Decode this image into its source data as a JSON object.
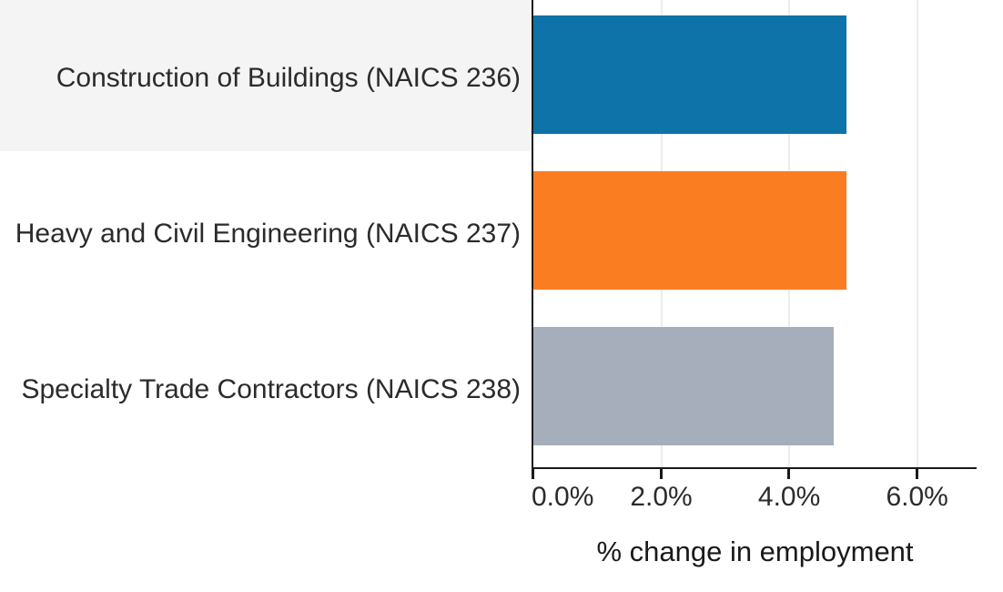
{
  "chart_data": {
    "type": "bar",
    "orientation": "horizontal",
    "title": "",
    "xlabel": "% change in employment",
    "ylabel": "",
    "categories": [
      "Construction of Buildings (NAICS 236)",
      "Heavy and Civil Engineering (NAICS 237)",
      "Specialty Trade Contractors (NAICS 238)"
    ],
    "values": [
      4.9,
      4.9,
      4.7
    ],
    "unit": "%",
    "bar_colors": [
      "#0d73a8",
      "#fb7d21",
      "#a5aeba"
    ],
    "xlim": [
      0,
      6.93
    ],
    "x_ticks": [
      {
        "value": 0,
        "label": "0.0%"
      },
      {
        "value": 2,
        "label": "2.0%"
      },
      {
        "value": 4,
        "label": "4.0%"
      },
      {
        "value": 6,
        "label": "6.0%"
      }
    ],
    "gridlines": "vertical",
    "legend": "none",
    "highlighted_row": 0,
    "highlight_color": "#f4f4f4",
    "axis_color": "#1a1a1a",
    "gridline_color": "#ececec",
    "label_color": "#2b2b2b"
  }
}
